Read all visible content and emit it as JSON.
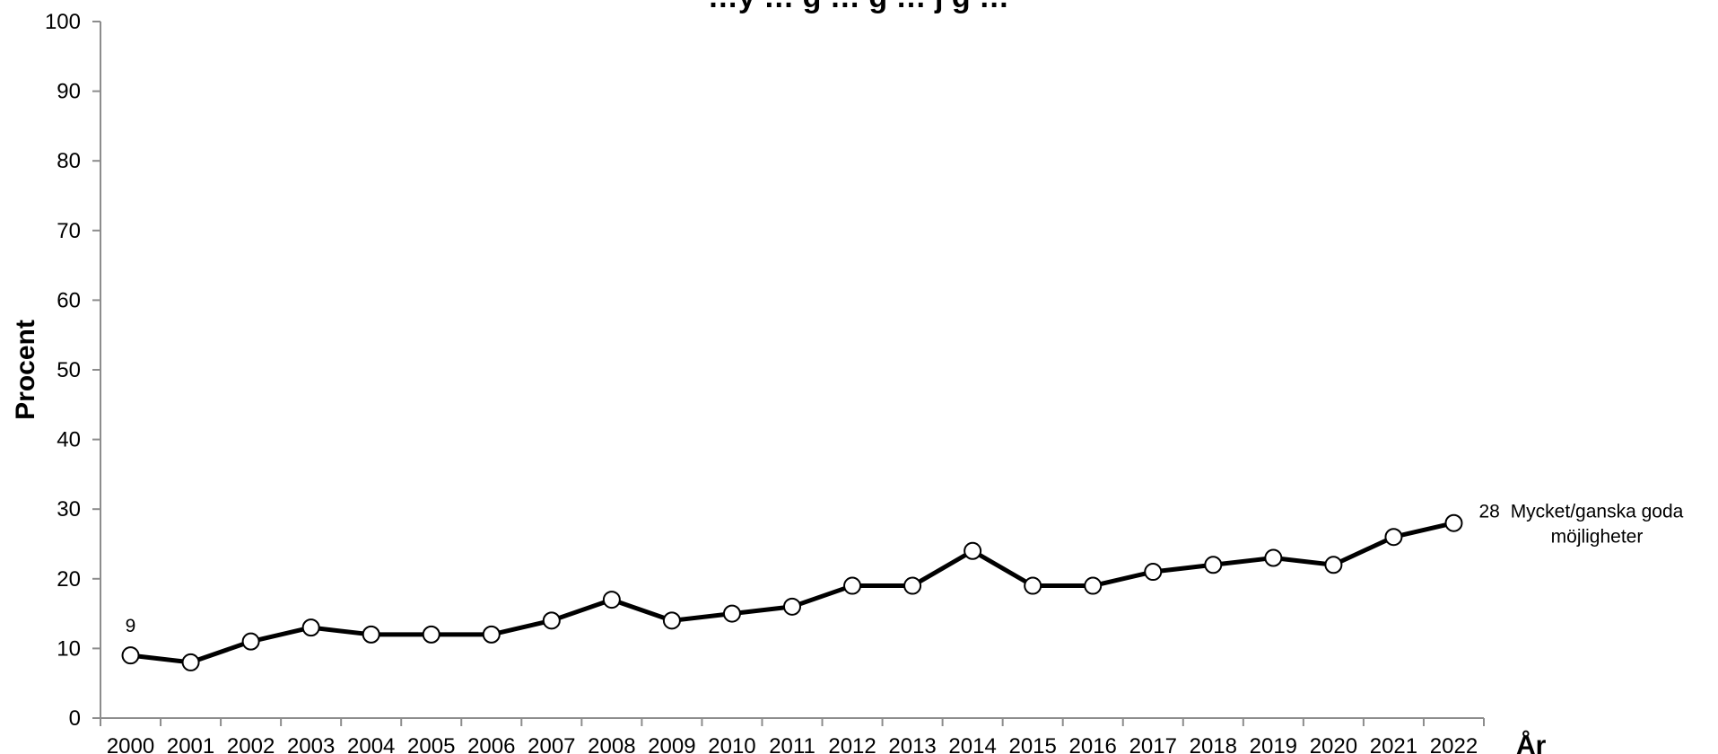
{
  "chart_data": {
    "type": "line",
    "title": "…y … g … g … j g …",
    "xlabel": "År",
    "ylabel": "Procent",
    "ylim": [
      0,
      100
    ],
    "yticks": [
      0,
      10,
      20,
      30,
      40,
      50,
      60,
      70,
      80,
      90,
      100
    ],
    "categories": [
      "2000",
      "2001",
      "2002",
      "2003",
      "2004",
      "2005",
      "2006",
      "2007",
      "2008",
      "2009",
      "2010",
      "2011",
      "2012",
      "2013",
      "2014",
      "2015",
      "2016",
      "2017",
      "2018",
      "2019",
      "2020",
      "2021",
      "2022"
    ],
    "series": [
      {
        "name": "Mycket/ganska goda möjligheter",
        "name_lines": [
          "Mycket/ganska goda",
          "möjligheter"
        ],
        "values": [
          9,
          8,
          11,
          13,
          12,
          12,
          12,
          14,
          17,
          14,
          15,
          16,
          19,
          19,
          24,
          19,
          19,
          21,
          22,
          23,
          22,
          26,
          28
        ],
        "color": "#000000",
        "marker_fill": "#ffffff"
      }
    ],
    "data_labels": [
      {
        "index": 0,
        "text": "9"
      },
      {
        "index": 22,
        "text": "28"
      }
    ],
    "grid": false,
    "legend": "inline-right"
  }
}
